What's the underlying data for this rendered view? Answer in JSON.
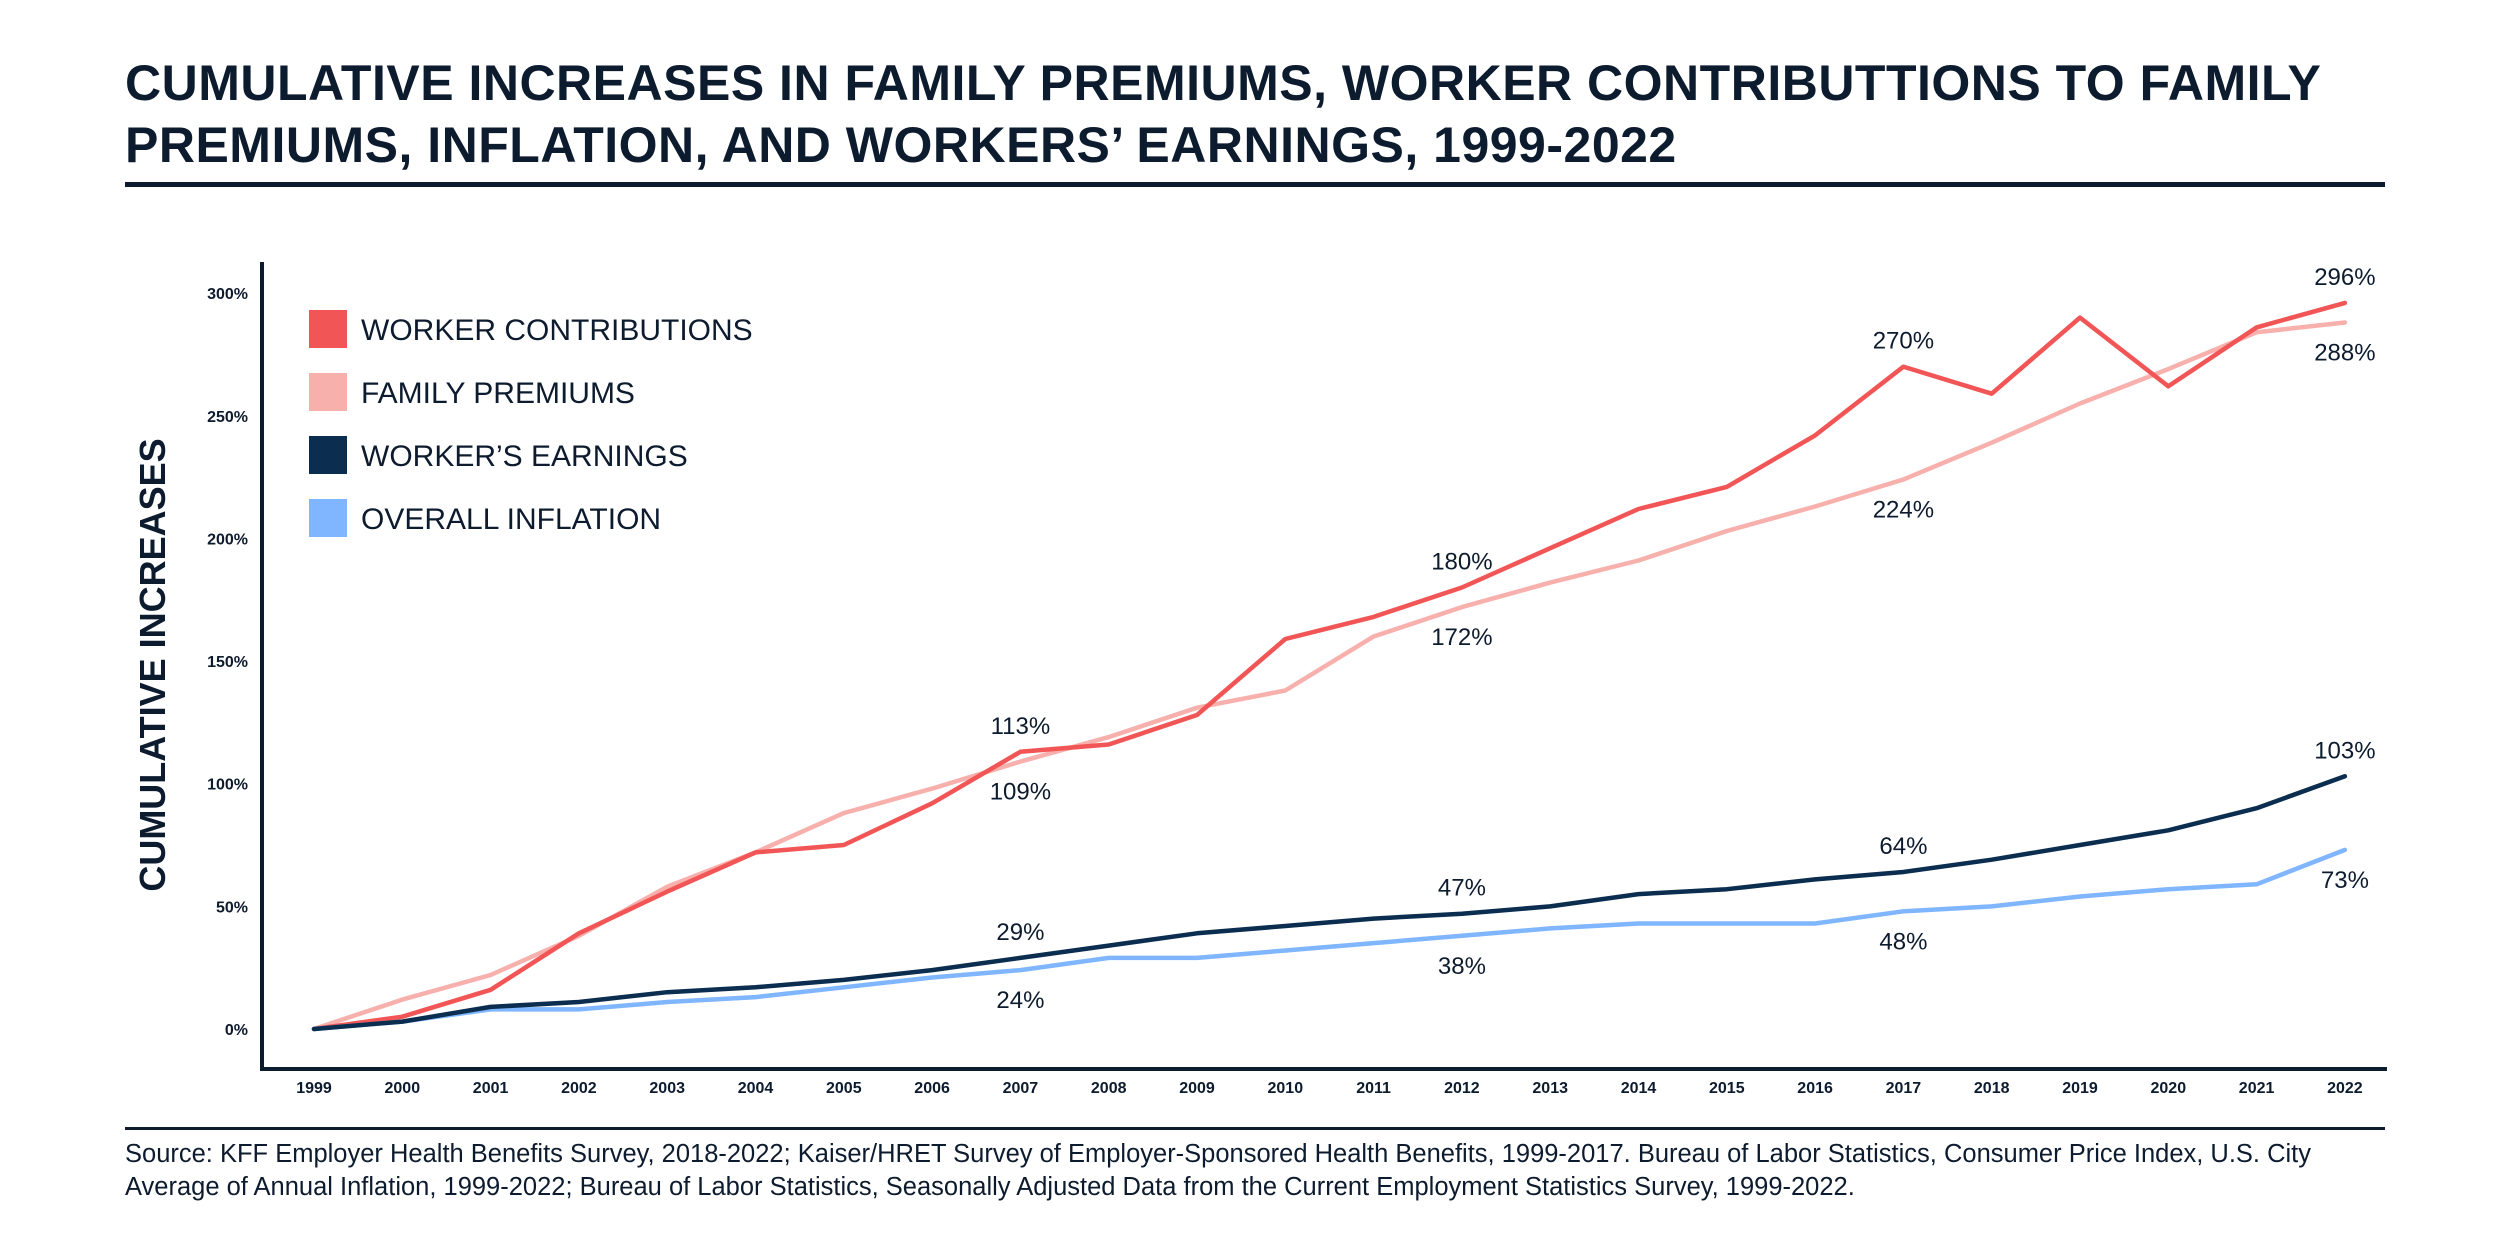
{
  "title": "CUMULATIVE INCREASES IN FAMILY PREMIUMS, WORKER CONTRIBUTTIONS TO FAMILY PREMIUMS, INFLATION, AND WORKERS’ EARNINGS, 1999-2022",
  "source": "Source: KFF Employer Health Benefits Survey, 2018-2022; Kaiser/HRET Survey of Employer-Sponsored Health Benefits, 1999-2017. Bureau of Labor Statistics, Consumer Price Index, U.S. City Average of Annual Inflation, 1999-2022; Bureau of Labor Statistics, Seasonally Adjusted Data from the Current Employment Statistics Survey, 1999-2022.",
  "chart_data": {
    "type": "line",
    "ylabel": "CUMULATIVE INCREASES",
    "xlabel": "",
    "ylim": [
      0,
      300
    ],
    "yticks": [
      0,
      50,
      100,
      150,
      200,
      250,
      300
    ],
    "ytick_labels": [
      "0%",
      "50%",
      "100%",
      "150%",
      "200%",
      "250%",
      "300%"
    ],
    "x": [
      "1999",
      "2000",
      "2001",
      "2002",
      "2003",
      "2004",
      "2005",
      "2006",
      "2007",
      "2008",
      "2009",
      "2010",
      "2011",
      "2012",
      "2013",
      "2014",
      "2015",
      "2016",
      "2017",
      "2018",
      "2019",
      "2020",
      "2021",
      "2022"
    ],
    "grid": false,
    "legend_position": "top-left",
    "series": [
      {
        "name": "WORKER CONTRIBUTIONS",
        "color": "#f25555",
        "values": [
          0,
          5,
          16,
          39,
          56,
          72,
          75,
          92,
          113,
          116,
          128,
          159,
          168,
          180,
          196,
          212,
          221,
          242,
          270,
          259,
          290,
          262,
          286,
          296
        ]
      },
      {
        "name": "FAMILY PREMIUMS",
        "color": "#f8b0ad",
        "values": [
          0,
          12,
          22,
          38,
          58,
          72,
          88,
          98,
          109,
          119,
          131,
          138,
          160,
          172,
          182,
          191,
          203,
          213,
          224,
          239,
          255,
          269,
          284,
          288
        ]
      },
      {
        "name": "WORKER’S EARNINGS",
        "color": "#0b2d4f",
        "values": [
          0,
          3,
          9,
          11,
          15,
          17,
          20,
          24,
          29,
          34,
          39,
          42,
          45,
          47,
          50,
          55,
          57,
          61,
          64,
          69,
          75,
          81,
          90,
          103
        ]
      },
      {
        "name": "OVERALL INFLATION",
        "color": "#7fb6ff",
        "values": [
          0,
          3,
          8,
          8,
          11,
          13,
          17,
          21,
          24,
          29,
          29,
          32,
          35,
          38,
          41,
          43,
          43,
          43,
          48,
          50,
          54,
          57,
          59,
          73
        ]
      }
    ],
    "annotations": [
      {
        "text": "113%",
        "x": "2007",
        "value": 113,
        "placement": "above"
      },
      {
        "text": "109%",
        "x": "2007",
        "value": 109,
        "placement": "below"
      },
      {
        "text": "180%",
        "x": "2012",
        "value": 180,
        "placement": "above"
      },
      {
        "text": "172%",
        "x": "2012",
        "value": 172,
        "placement": "below"
      },
      {
        "text": "270%",
        "x": "2017",
        "value": 270,
        "placement": "above"
      },
      {
        "text": "224%",
        "x": "2017",
        "value": 224,
        "placement": "below"
      },
      {
        "text": "296%",
        "x": "2022",
        "value": 296,
        "placement": "above"
      },
      {
        "text": "288%",
        "x": "2022",
        "value": 288,
        "placement": "below"
      },
      {
        "text": "29%",
        "x": "2007",
        "value": 29,
        "placement": "above"
      },
      {
        "text": "24%",
        "x": "2007",
        "value": 24,
        "placement": "below"
      },
      {
        "text": "47%",
        "x": "2012",
        "value": 47,
        "placement": "above"
      },
      {
        "text": "38%",
        "x": "2012",
        "value": 38,
        "placement": "below"
      },
      {
        "text": "64%",
        "x": "2017",
        "value": 64,
        "placement": "above"
      },
      {
        "text": "48%",
        "x": "2017",
        "value": 48,
        "placement": "below"
      },
      {
        "text": "103%",
        "x": "2022",
        "value": 103,
        "placement": "above"
      },
      {
        "text": "73%",
        "x": "2022",
        "value": 73,
        "placement": "below"
      }
    ]
  }
}
